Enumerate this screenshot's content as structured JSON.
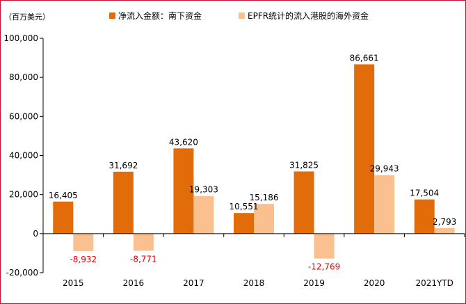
{
  "chart_data": {
    "type": "bar",
    "unit_label": "（百万美元）",
    "categories": [
      "2015",
      "2016",
      "2017",
      "2018",
      "2019",
      "2020",
      "2021YTD"
    ],
    "series": [
      {
        "name": "净流入金额：南下资金",
        "color": "#e36c0a",
        "values": [
          16405,
          31692,
          43620,
          10551,
          31825,
          86661,
          17504
        ],
        "labels": [
          "16,405",
          "31,692",
          "43,620",
          "10,551",
          "31,825",
          "86,661",
          "17,504"
        ]
      },
      {
        "name": "EPFR统计的流入港股的海外资金",
        "color": "#fac090",
        "values": [
          -8932,
          -8771,
          19303,
          15186,
          -12769,
          29943,
          2793
        ],
        "labels": [
          "-8,932",
          "-8,771",
          "19,303",
          "15,186",
          "-12,769",
          "29,943",
          "2,793"
        ]
      }
    ],
    "ylim": [
      -20000,
      100000
    ],
    "yticks": [
      -20000,
      0,
      20000,
      40000,
      60000,
      80000,
      100000
    ],
    "ytick_labels": [
      "-20,000",
      "0",
      "20,000",
      "40,000",
      "60,000",
      "80,000",
      "100,000"
    ],
    "negative_label_color": "#e00000",
    "grid": false,
    "legend_position": "top"
  }
}
